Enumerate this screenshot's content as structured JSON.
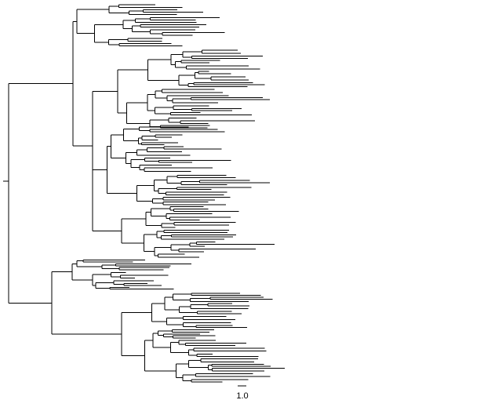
{
  "figure": {
    "type": "phylogenetic-tree",
    "scale_bar": {
      "label": "1.0",
      "value": 1.0
    },
    "colors": {
      "line": "#000000",
      "background": "#ffffff"
    }
  }
}
